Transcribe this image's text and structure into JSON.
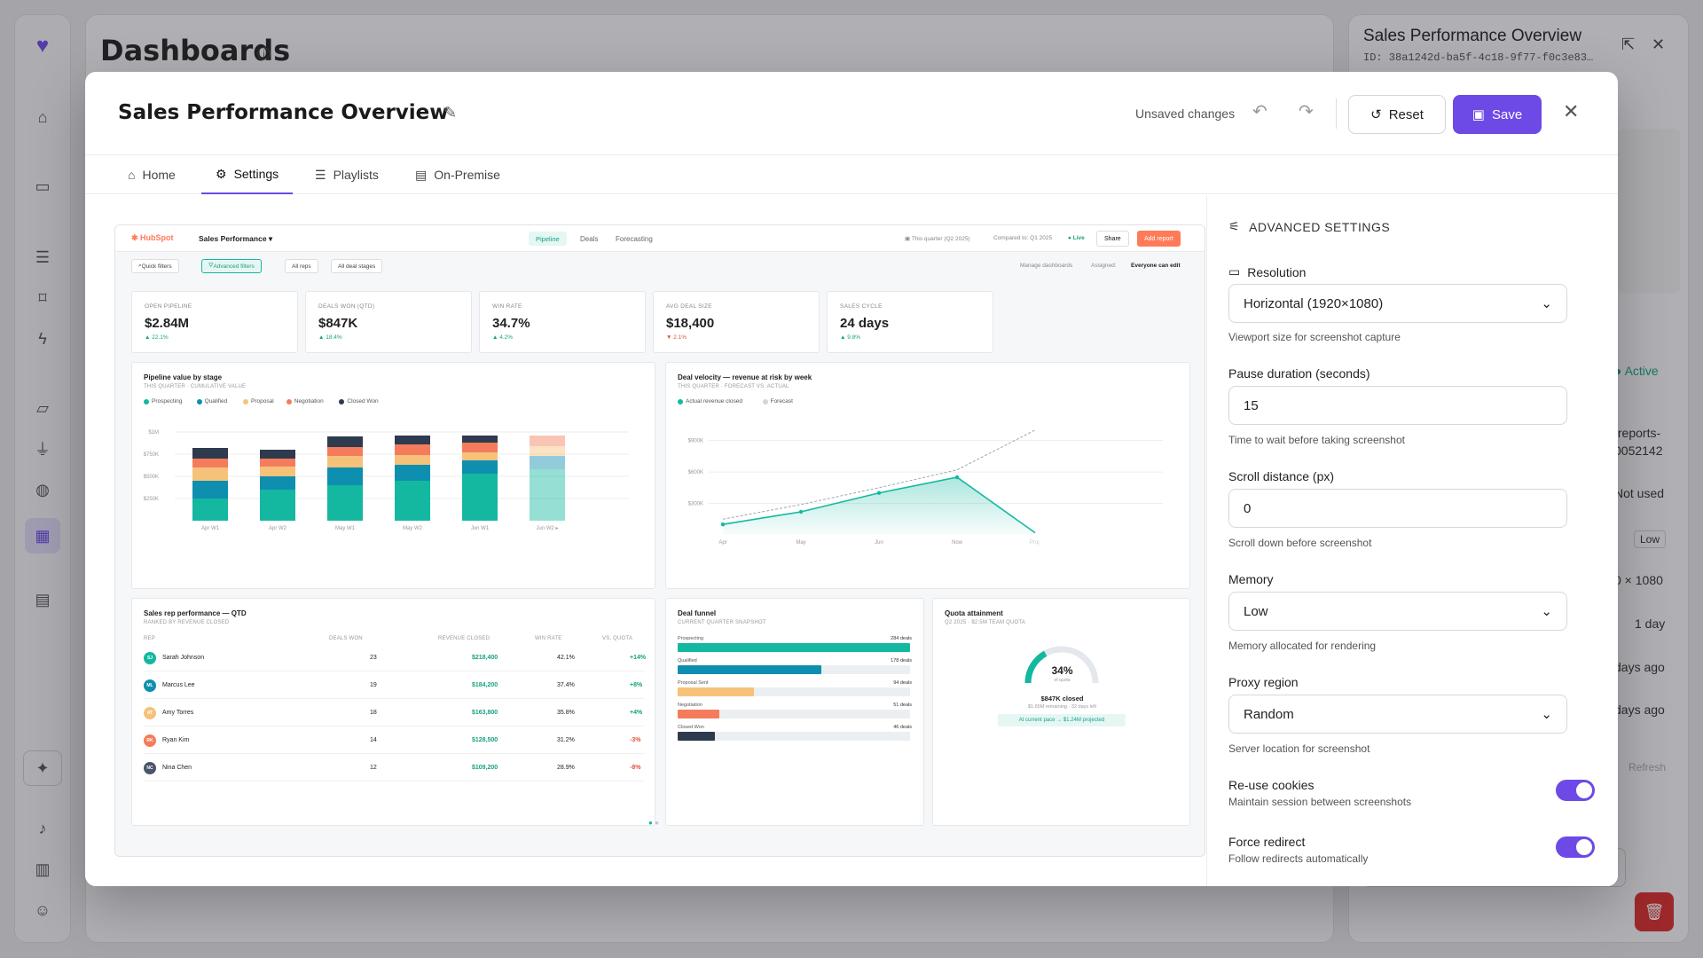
{
  "background": {
    "page_title": "Dashboards",
    "right_panel": {
      "title": "Sales Performance Overview",
      "id": "ID: 38a1242d-ba5f-4c18-9f77-f0c3e83…",
      "status": "Active",
      "url_fragment_1": "/reports-",
      "url_fragment_2": "0052142",
      "not_used": "Not used",
      "low": "Low",
      "resolution": "0 × 1080",
      "interval": "1 day",
      "days_ago_1": "days ago",
      "days_ago_2": "days ago",
      "refresh": "Refresh"
    }
  },
  "modal": {
    "title": "Sales Performance Overview",
    "unsaved": "Unsaved changes",
    "reset_label": "Reset",
    "save_label": "Save",
    "tabs": [
      {
        "label": "Home",
        "icon": "home-icon"
      },
      {
        "label": "Settings",
        "icon": "gear-icon"
      },
      {
        "label": "Playlists",
        "icon": "list-icon"
      },
      {
        "label": "On-Premise",
        "icon": "server-icon"
      }
    ],
    "active_tab": "Settings"
  },
  "preview": {
    "brand": "HubSpot",
    "report_name": "Sales Performance",
    "nav": [
      "Pipeline",
      "Deals",
      "Forecasting"
    ],
    "period": "This quarter (Q2 2025)",
    "compared": "Compared to: Q1 2025",
    "live": "Live",
    "share": "Share",
    "add_report": "Add report",
    "filters": [
      "Quick filters",
      "Advanced filters",
      "All reps",
      "All deal stages"
    ],
    "manage": "Manage dashboards",
    "assigned": "Assigned:",
    "everyone": "Everyone can edit",
    "kpis": [
      {
        "label": "OPEN PIPELINE",
        "value": "$2.84M",
        "change": "▲ 22.1%",
        "dir": "up"
      },
      {
        "label": "DEALS WON (QTD)",
        "value": "$847K",
        "change": "▲ 18.4%",
        "dir": "up"
      },
      {
        "label": "WIN RATE",
        "value": "34.7%",
        "change": "▲ 4.2%",
        "dir": "up"
      },
      {
        "label": "AVG DEAL SIZE",
        "value": "$18,400",
        "change": "▼ 2.1%",
        "dir": "down"
      },
      {
        "label": "SALES CYCLE",
        "value": "24 days",
        "change": "▲ 9.8%",
        "dir": "up"
      }
    ],
    "pipeline": {
      "title": "Pipeline value by stage",
      "subtitle": "THIS QUARTER · CUMULATIVE VALUE",
      "legend": [
        {
          "name": "Prospecting",
          "color": "#14b8a0"
        },
        {
          "name": "Qualified",
          "color": "#0e8fb0"
        },
        {
          "name": "Proposal",
          "color": "#f6c27a"
        },
        {
          "name": "Negotiation",
          "color": "#f47c5c"
        },
        {
          "name": "Closed Won",
          "color": "#2e3a4e"
        }
      ]
    },
    "velocity": {
      "title": "Deal velocity — revenue at risk by week",
      "subtitle": "THIS QUARTER · FORECAST VS. ACTUAL",
      "legend": [
        {
          "name": "Actual revenue closed",
          "color": "#14b8a0"
        },
        {
          "name": "Forecast",
          "color": "#cfd6dc"
        }
      ]
    },
    "reps": {
      "title": "Sales rep performance — QTD",
      "subtitle": "RANKED BY REVENUE CLOSED",
      "headers": [
        "REP",
        "DEALS WON",
        "REVENUE CLOSED",
        "WIN RATE",
        "VS. QUOTA"
      ],
      "rows": [
        {
          "initials": "SJ",
          "name": "Sarah Johnson",
          "deals": "23",
          "revenue": "$218,400",
          "win": "42.1%",
          "quota": "+14%",
          "color": "#14b8a0",
          "qcolor": "#16a37f"
        },
        {
          "initials": "ML",
          "name": "Marcus Lee",
          "deals": "19",
          "revenue": "$184,200",
          "win": "37.4%",
          "quota": "+8%",
          "color": "#0e8fb0",
          "qcolor": "#16a37f"
        },
        {
          "initials": "AT",
          "name": "Amy Torres",
          "deals": "18",
          "revenue": "$163,800",
          "win": "35.8%",
          "quota": "+4%",
          "color": "#f6c27a",
          "qcolor": "#16a37f"
        },
        {
          "initials": "RK",
          "name": "Ryan Kim",
          "deals": "14",
          "revenue": "$128,500",
          "win": "31.2%",
          "quota": "-3%",
          "color": "#f47c5c",
          "qcolor": "#e0533d"
        },
        {
          "initials": "NC",
          "name": "Nina Chen",
          "deals": "12",
          "revenue": "$109,200",
          "win": "28.9%",
          "quota": "-8%",
          "color": "#4a5568",
          "qcolor": "#e0533d"
        }
      ]
    },
    "funnel": {
      "title": "Deal funnel",
      "subtitle": "CURRENT QUARTER SNAPSHOT",
      "stages": [
        {
          "name": "Prospecting",
          "deals": "284 deals",
          "frac": 1.0,
          "color": "#14b8a0"
        },
        {
          "name": "Qualified",
          "deals": "178 deals",
          "frac": 0.62,
          "color": "#0e8fb0"
        },
        {
          "name": "Proposal Sent",
          "deals": "94 deals",
          "frac": 0.33,
          "color": "#f6c27a"
        },
        {
          "name": "Negotiation",
          "deals": "51 deals",
          "frac": 0.18,
          "color": "#f47c5c"
        },
        {
          "name": "Closed Won",
          "deals": "46 deals",
          "frac": 0.16,
          "color": "#2e3a4e"
        }
      ]
    },
    "quota": {
      "title": "Quota attainment",
      "subtitle": "Q2 2025 · $2.5M TEAM QUOTA",
      "percent": "34%",
      "of_quota": "of quota",
      "fraction": 0.34,
      "closed": "$847K closed",
      "remaining": "$1.65M remaining · 32 days left",
      "pace": "At current pace → $1.24M projected"
    }
  },
  "chart_data": [
    {
      "type": "bar",
      "stacked": true,
      "title": "Pipeline value by stage",
      "categories": [
        "Apr W1",
        "Apr W2",
        "May W1",
        "May W2",
        "Jun W1",
        "Jun W2 ▸"
      ],
      "y_ticks": [
        "$250K",
        "$500K",
        "$750K",
        "$1M"
      ],
      "ylim": [
        0,
        1000
      ],
      "series": [
        {
          "name": "Prospecting",
          "color": "#14b8a0",
          "values": [
            250,
            350,
            400,
            450,
            530,
            580
          ]
        },
        {
          "name": "Qualified",
          "color": "#0e8fb0",
          "values": [
            200,
            150,
            200,
            180,
            150,
            150
          ]
        },
        {
          "name": "Proposal",
          "color": "#f6c27a",
          "values": [
            150,
            110,
            130,
            110,
            90,
            110
          ]
        },
        {
          "name": "Negotiation",
          "color": "#f47c5c",
          "values": [
            100,
            90,
            100,
            120,
            110,
            120
          ]
        },
        {
          "name": "Closed Won",
          "color": "#2e3a4e",
          "values": [
            120,
            100,
            120,
            100,
            80,
            0
          ]
        }
      ]
    },
    {
      "type": "line",
      "title": "Deal velocity — revenue at risk by week",
      "categories": [
        "Apr",
        "May",
        "Jun",
        "Now",
        "Proj."
      ],
      "y_ticks": [
        "$300K",
        "$600K",
        "$900K"
      ],
      "ylim": [
        0,
        1100
      ],
      "series": [
        {
          "name": "Actual revenue closed",
          "color": "#14b8a0",
          "values": [
            100,
            220,
            400,
            550,
            20
          ]
        },
        {
          "name": "Forecast",
          "color": "#9aa7b2",
          "values": [
            150,
            290,
            450,
            620,
            1000
          ]
        }
      ]
    }
  ],
  "settings": {
    "header": "ADVANCED SETTINGS",
    "resolution": {
      "label": "Resolution",
      "value": "Horizontal (1920×1080)",
      "help": "Viewport size for screenshot capture"
    },
    "pause": {
      "label": "Pause duration (seconds)",
      "value": "15",
      "help": "Time to wait before taking screenshot"
    },
    "scroll": {
      "label": "Scroll distance (px)",
      "value": "0",
      "help": "Scroll down before screenshot"
    },
    "memory": {
      "label": "Memory",
      "value": "Low",
      "help": "Memory allocated for rendering"
    },
    "proxy": {
      "label": "Proxy region",
      "value": "Random",
      "help": "Server location for screenshot"
    },
    "reuse_cookies": {
      "label": "Re-use cookies",
      "help": "Maintain session between screenshots",
      "on": true
    },
    "force_redirect": {
      "label": "Force redirect",
      "help": "Follow redirects automatically",
      "on": true
    }
  },
  "colors": {
    "accent": "#6d4ae6",
    "teal": "#14b8a0",
    "hubspot_orange": "#ff7a59"
  }
}
